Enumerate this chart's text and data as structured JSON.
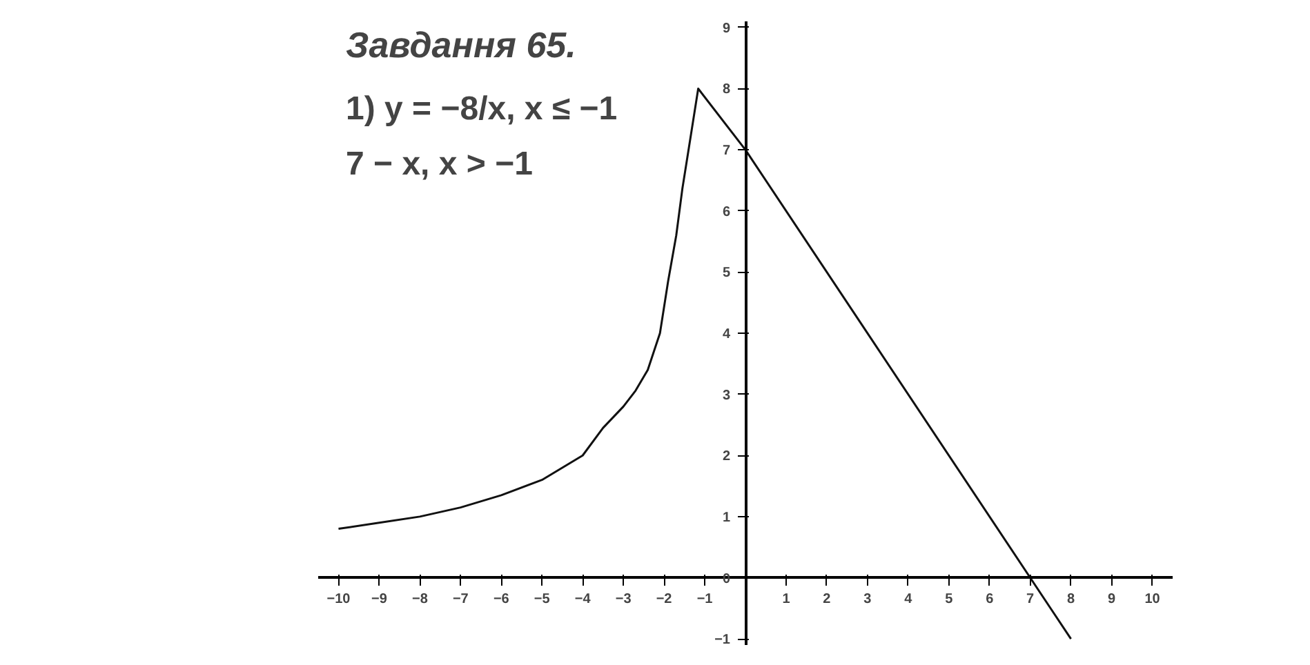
{
  "chart_data": {
    "type": "line",
    "title": "Завдання 65.",
    "annotations": [
      "1) y = −8/x, x ≤ −1",
      "    7 − x, x > −1"
    ],
    "series": [
      {
        "color": "#111111",
        "x": [
          -10,
          -9,
          -8,
          -7,
          -6,
          -5,
          -4,
          -3.5,
          -3,
          -2.7,
          -2.4,
          -2.1,
          -1.9,
          -1.7,
          -1.55,
          -1.35,
          -1.16,
          0,
          8
        ],
        "values": [
          0.8,
          0.9,
          1.0,
          1.15,
          1.35,
          1.6,
          2.0,
          2.45,
          2.8,
          3.06,
          3.4,
          4.0,
          4.85,
          5.6,
          6.36,
          7.2,
          8.0,
          7,
          -1
        ]
      }
    ],
    "xlim": [
      -10.5,
      10.5
    ],
    "ylim": [
      -1.1,
      9.1
    ],
    "xticks": [
      -10,
      -9,
      -8,
      -7,
      -6,
      -5,
      -4,
      -3,
      -2,
      -1,
      {
        "value": 0,
        "label": null
      },
      1,
      2,
      3,
      4,
      5,
      6,
      7,
      8,
      9,
      10
    ],
    "yticks": [
      -1,
      0,
      1,
      2,
      3,
      4,
      5,
      6,
      7,
      8,
      9
    ],
    "grid": false,
    "marker": "none",
    "line_style": "solid"
  }
}
